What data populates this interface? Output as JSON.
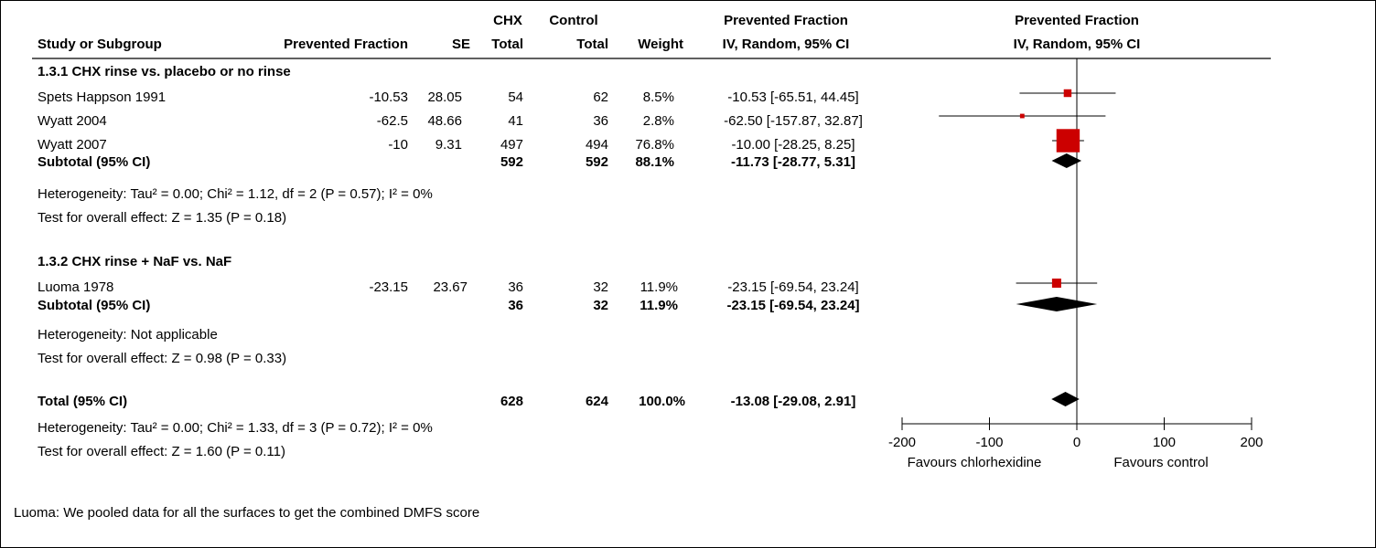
{
  "header": {
    "group1": "CHX",
    "group2": "Control",
    "effect_title": "Prevented Fraction",
    "plot_title": "Prevented Fraction",
    "col_study": "Study or Subgroup",
    "col_effect": "Prevented Fraction",
    "col_se": "SE",
    "col_total1": "Total",
    "col_total2": "Total",
    "col_weight": "Weight",
    "col_ci": "IV, Random, 95% CI",
    "plot_method": "IV, Random, 95% CI"
  },
  "subgroups": [
    {
      "title": "1.3.1 CHX rinse vs. placebo or no rinse",
      "studies": [
        {
          "name": "Spets Happson 1991",
          "effect": "-10.53",
          "se": "28.05",
          "total1": "54",
          "total2": "62",
          "weight": "8.5%",
          "ci": "-10.53 [-65.51, 44.45]"
        },
        {
          "name": "Wyatt 2004",
          "effect": "-62.5",
          "se": "48.66",
          "total1": "41",
          "total2": "36",
          "weight": "2.8%",
          "ci": "-62.50 [-157.87, 32.87]"
        },
        {
          "name": "Wyatt 2007",
          "effect": "-10",
          "se": "9.31",
          "total1": "497",
          "total2": "494",
          "weight": "76.8%",
          "ci": "-10.00 [-28.25, 8.25]"
        }
      ],
      "subtotal": {
        "label": "Subtotal (95% CI)",
        "total1": "592",
        "total2": "592",
        "weight": "88.1%",
        "ci": "-11.73 [-28.77, 5.31]"
      },
      "heterogeneity": "Heterogeneity: Tau² = 0.00; Chi² = 1.12, df = 2 (P = 0.57); I² = 0%",
      "overall": "Test for overall effect: Z = 1.35 (P = 0.18)"
    },
    {
      "title": "1.3.2 CHX rinse + NaF vs. NaF",
      "studies": [
        {
          "name": "Luoma 1978",
          "effect": "-23.15",
          "se": "23.67",
          "total1": "36",
          "total2": "32",
          "weight": "11.9%",
          "ci": "-23.15 [-69.54, 23.24]"
        }
      ],
      "subtotal": {
        "label": "Subtotal (95% CI)",
        "total1": "36",
        "total2": "32",
        "weight": "11.9%",
        "ci": "-23.15 [-69.54, 23.24]"
      },
      "heterogeneity": "Heterogeneity: Not applicable",
      "overall": "Test for overall effect: Z = 0.98 (P = 0.33)"
    }
  ],
  "total": {
    "label": "Total (95% CI)",
    "total1": "628",
    "total2": "624",
    "weight": "100.0%",
    "ci": "-13.08 [-29.08, 2.91]",
    "heterogeneity": "Heterogeneity: Tau² = 0.00; Chi² = 1.33, df = 3 (P = 0.72); I² = 0%",
    "overall": "Test for overall effect: Z = 1.60 (P = 0.11)"
  },
  "axis": {
    "ticks": [
      "-200",
      "-100",
      "0",
      "100",
      "200"
    ],
    "favours_left": "Favours chlorhexidine",
    "favours_right": "Favours control"
  },
  "footnote": "Luoma: We pooled data for all the surfaces to get the combined DMFS score",
  "colors": {
    "study_marker": "#cc0000",
    "summary_marker": "#000000"
  },
  "chart_data": {
    "type": "forest",
    "xlim": [
      -200,
      200
    ],
    "ticks": [
      -200,
      -100,
      0,
      100,
      200
    ],
    "null_line": 0,
    "studies": [
      {
        "name": "Spets Happson 1991",
        "estimate": -10.53,
        "lower": -65.51,
        "upper": 44.45,
        "weight": 8.5
      },
      {
        "name": "Wyatt 2004",
        "estimate": -62.5,
        "lower": -157.87,
        "upper": 32.87,
        "weight": 2.8
      },
      {
        "name": "Wyatt 2007",
        "estimate": -10.0,
        "lower": -28.25,
        "upper": 8.25,
        "weight": 76.8
      },
      {
        "name": "Luoma 1978",
        "estimate": -23.15,
        "lower": -69.54,
        "upper": 23.24,
        "weight": 11.9
      }
    ],
    "summaries": [
      {
        "label": "Subtotal (95% CI)",
        "estimate": -11.73,
        "lower": -28.77,
        "upper": 5.31
      },
      {
        "label": "Subtotal (95% CI)",
        "estimate": -23.15,
        "lower": -69.54,
        "upper": 23.24
      },
      {
        "label": "Total (95% CI)",
        "estimate": -13.08,
        "lower": -29.08,
        "upper": 2.91
      }
    ]
  }
}
